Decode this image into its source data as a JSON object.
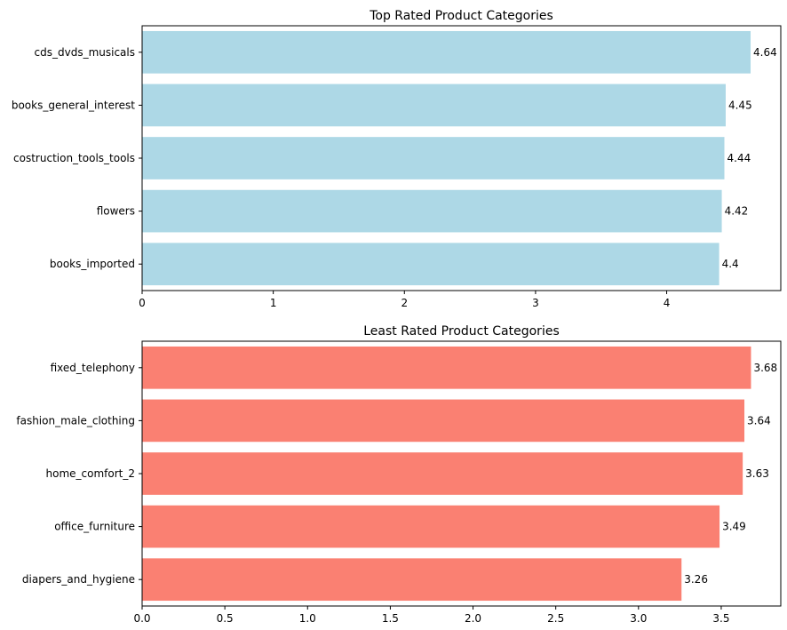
{
  "chart_data": [
    {
      "type": "bar",
      "orientation": "horizontal",
      "title": "Top Rated Product Categories",
      "categories": [
        "cds_dvds_musicals",
        "books_general_interest",
        "costruction_tools_tools",
        "flowers",
        "books_imported"
      ],
      "values": [
        4.64,
        4.45,
        4.44,
        4.42,
        4.4
      ],
      "data_labels": [
        "4.64",
        "4.45",
        "4.44",
        "4.42",
        "4.4"
      ],
      "xlim": [
        0,
        4.87
      ],
      "xticks": [
        0,
        1,
        2,
        3,
        4
      ],
      "xtick_labels": [
        "0",
        "1",
        "2",
        "3",
        "4"
      ],
      "bar_color": "#add8e6",
      "xlabel": "",
      "ylabel": "",
      "grid": false
    },
    {
      "type": "bar",
      "orientation": "horizontal",
      "title": "Least Rated Product Categories",
      "categories": [
        "fixed_telephony",
        "fashion_male_clothing",
        "home_comfort_2",
        "office_furniture",
        "diapers_and_hygiene"
      ],
      "values": [
        3.68,
        3.64,
        3.63,
        3.49,
        3.26
      ],
      "data_labels": [
        "3.68",
        "3.64",
        "3.63",
        "3.49",
        "3.26"
      ],
      "xlim": [
        0,
        3.86
      ],
      "xticks": [
        0,
        0.5,
        1.0,
        1.5,
        2.0,
        2.5,
        3.0,
        3.5
      ],
      "xtick_labels": [
        "0.0",
        "0.5",
        "1.0",
        "1.5",
        "2.0",
        "2.5",
        "3.0",
        "3.5"
      ],
      "bar_color": "#fa8072",
      "xlabel": "",
      "ylabel": "",
      "grid": false
    }
  ]
}
